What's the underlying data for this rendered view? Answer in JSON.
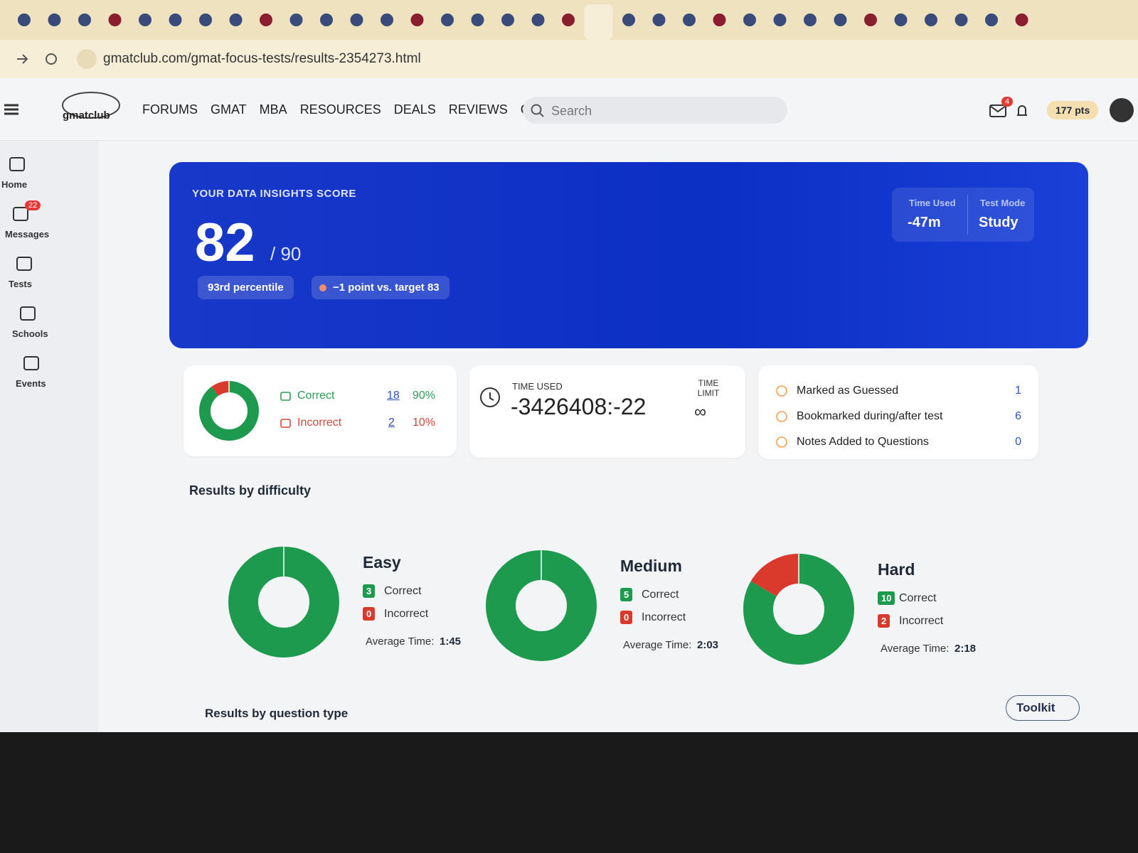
{
  "browser": {
    "url": "gmatclub.com/gmat-focus-tests/results-2354273.html"
  },
  "nav": {
    "logo": "gmatclub",
    "items": [
      "FORUMS",
      "GMAT",
      "MBA",
      "RESOURCES",
      "DEALS",
      "REVIEWS",
      "CHAT"
    ],
    "search": "Search",
    "mail_badge": "4",
    "points": "177 pts"
  },
  "sidebar": [
    {
      "label": "Home"
    },
    {
      "label": "Messages",
      "badge": "22"
    },
    {
      "label": "Tests"
    },
    {
      "label": "Schools"
    },
    {
      "label": "Events"
    }
  ],
  "score": {
    "heading": "YOUR DATA INSIGHTS SCORE",
    "value": "82",
    "max": "/ 90",
    "percentile": "93rd percentile",
    "target": "−1 point vs. target 83",
    "time_used_label": "Time Used",
    "time_used": "-47m",
    "mode_label": "Test Mode",
    "mode": "Study"
  },
  "summary": {
    "correct_label": "Correct",
    "correct": 18,
    "correct_pct": "90%",
    "incorrect_label": "Incorrect",
    "incorrect": 2,
    "incorrect_pct": "10%"
  },
  "time": {
    "used_label": "TIME USED",
    "used": "-3426408:-22",
    "limit_label": "TIME LIMIT",
    "limit": "∞"
  },
  "flags": [
    {
      "label": "Marked as Guessed",
      "count": 1
    },
    {
      "label": "Bookmarked during/after test",
      "count": 6
    },
    {
      "label": "Notes Added to Questions",
      "count": 0
    }
  ],
  "difficulty": {
    "title": "Results by difficulty",
    "levels": [
      {
        "name": "Easy",
        "correct": 3,
        "correct_label": "Correct",
        "incorrect": 0,
        "incorrect_label": "Incorrect",
        "avg_label": "Average Time:",
        "avg": "1:45"
      },
      {
        "name": "Medium",
        "correct": 5,
        "correct_label": "Correct",
        "incorrect": 0,
        "incorrect_label": "Incorrect",
        "avg_label": "Average Time:",
        "avg": "2:03"
      },
      {
        "name": "Hard",
        "correct": 10,
        "correct_label": "Correct",
        "incorrect": 2,
        "incorrect_label": "Incorrect",
        "avg_label": "Average Time:",
        "avg": "2:18"
      }
    ]
  },
  "question_type_title": "Results by question type",
  "toolkit": "Toolkit"
}
